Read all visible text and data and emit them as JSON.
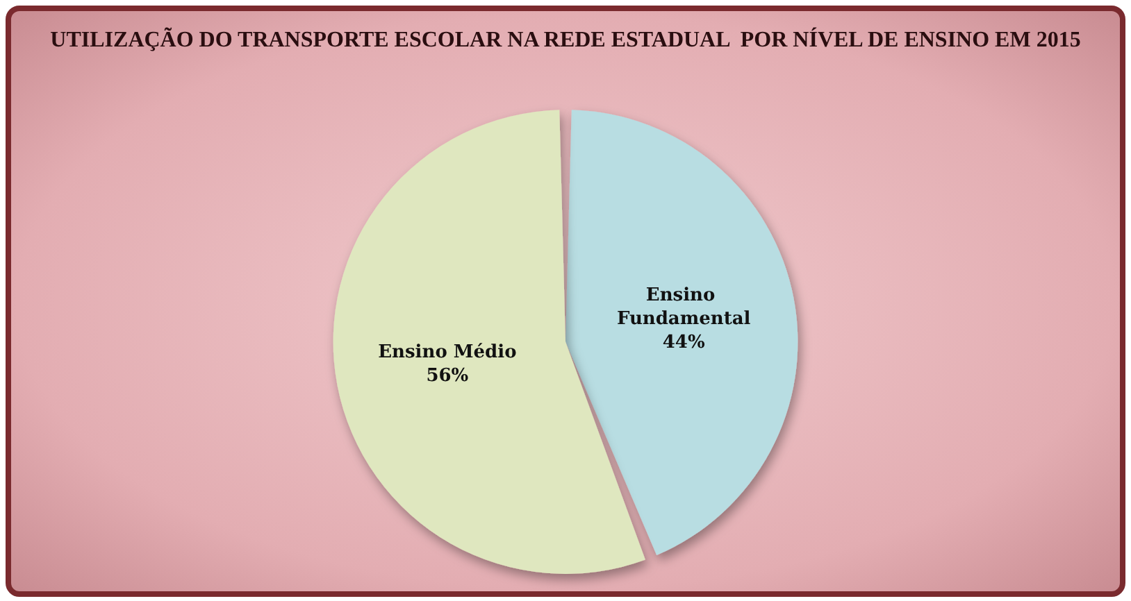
{
  "chart_data": {
    "type": "pie",
    "title": "UTILIZAÇÃO DO TRANSPORTE ESCOLAR NA REDE ESTADUAL  POR NÍVEL DE ENSINO EM 2015",
    "categories": [
      "Ensino Fundamental",
      "Ensino Médio"
    ],
    "values": [
      44,
      56
    ],
    "value_labels": [
      "44%",
      "56%"
    ],
    "colors": [
      "#b8dde2",
      "#dfe7bf"
    ]
  }
}
